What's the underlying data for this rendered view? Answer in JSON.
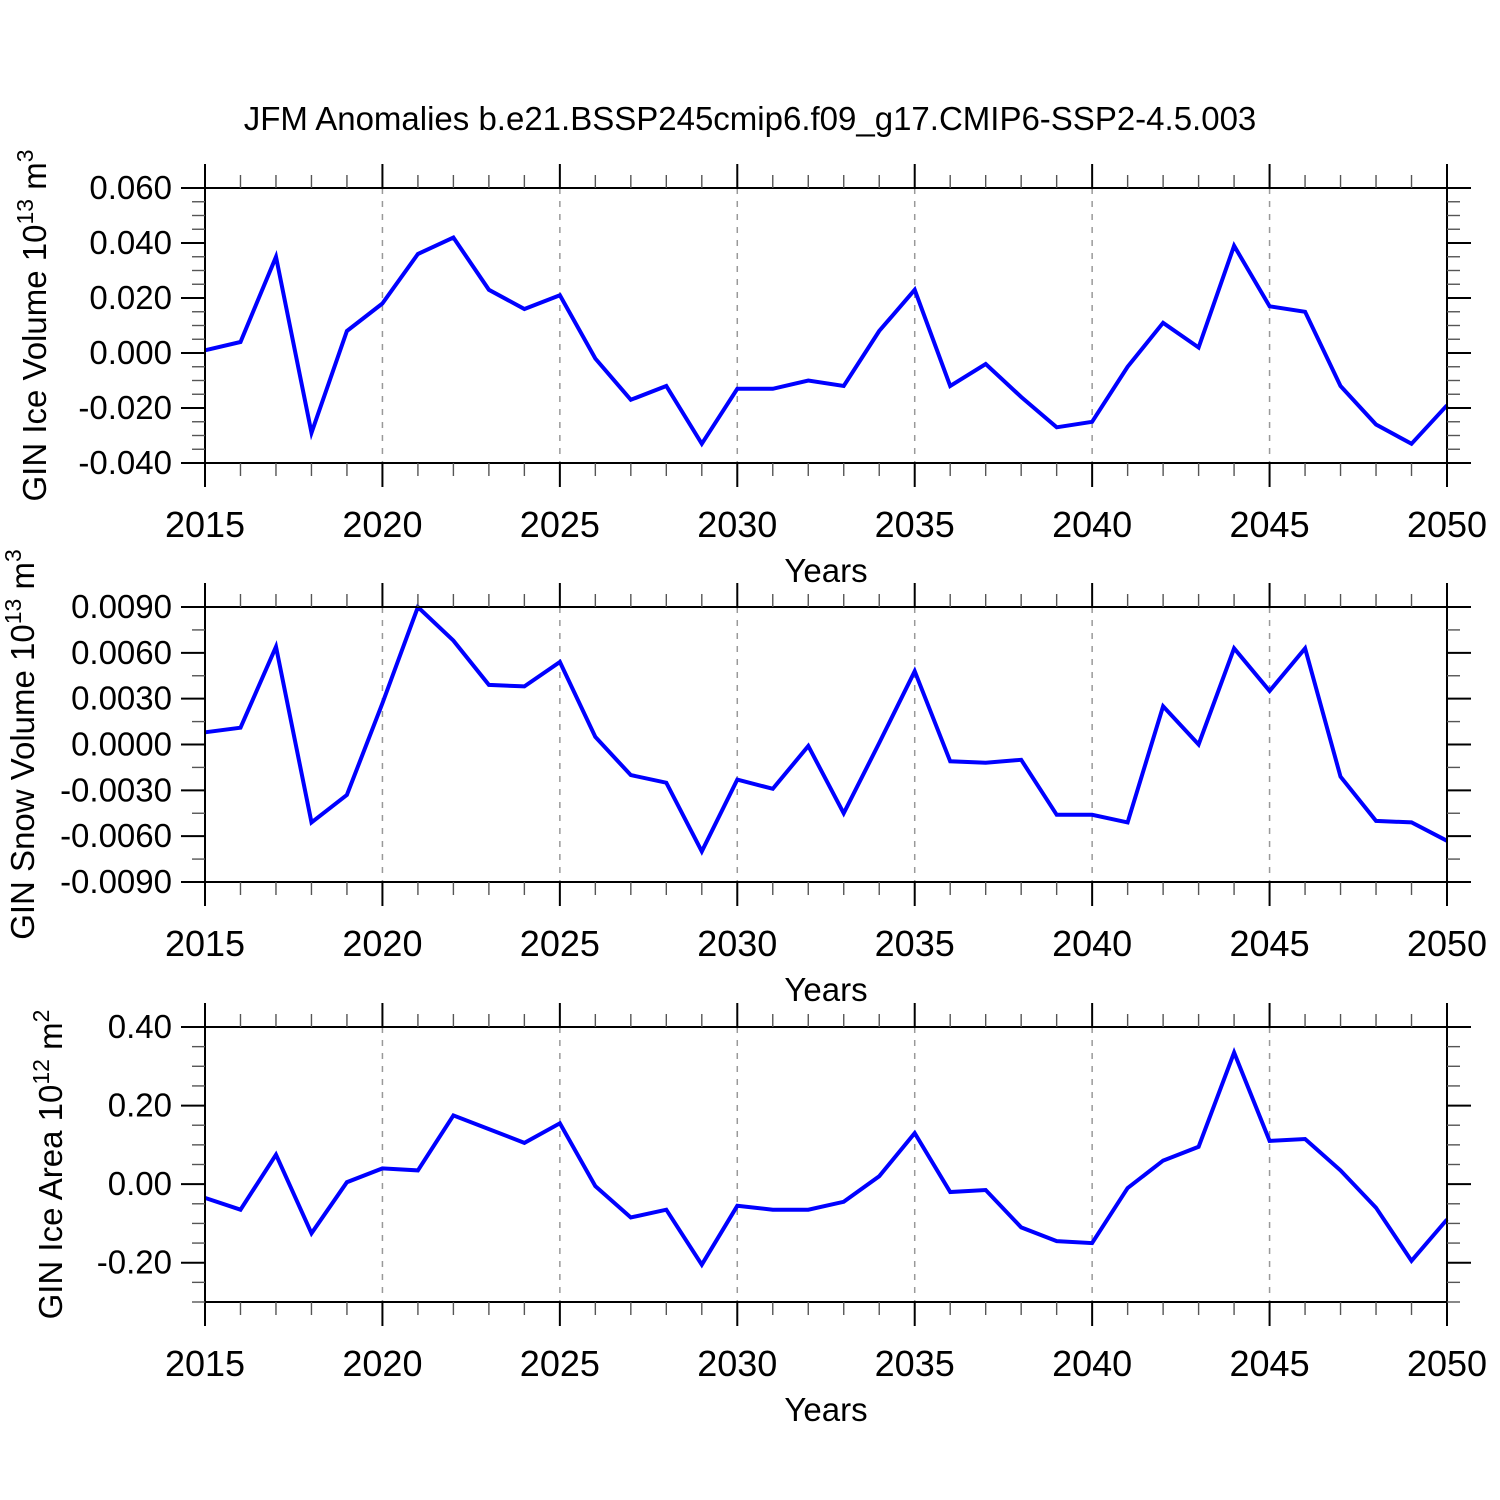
{
  "title": "JFM Anomalies b.e21.BSSP245cmip6.f09_g17.CMIP6-SSP2-4.5.003",
  "accent_color": "#0000ff",
  "chart_data": [
    {
      "type": "line",
      "name": "GIN Ice Volume anomalies",
      "ylabel": "GIN Ice Volume 10^{13} m^{3}",
      "xlabel": "Years",
      "line_color": "#0000ff",
      "legend": "none",
      "grid": "vertical-dashed",
      "xlim": [
        2015,
        2050
      ],
      "ylim": [
        -0.04,
        0.06
      ],
      "xtick_major": 5,
      "xtick_minor": 1,
      "ytick_major": 0.02,
      "ytick_minor": 0.005,
      "ytick_decimals": 3,
      "grid_x": [
        2020,
        2025,
        2030,
        2035,
        2040,
        2045
      ],
      "x": [
        2015,
        2016,
        2017,
        2018,
        2019,
        2020,
        2021,
        2022,
        2023,
        2024,
        2025,
        2026,
        2027,
        2028,
        2029,
        2030,
        2031,
        2032,
        2033,
        2034,
        2035,
        2036,
        2037,
        2038,
        2039,
        2040,
        2041,
        2042,
        2043,
        2044,
        2045,
        2046,
        2047,
        2048,
        2049,
        2050
      ],
      "values": [
        0.001,
        0.004,
        0.035,
        -0.029,
        0.008,
        0.018,
        0.036,
        0.042,
        0.023,
        0.016,
        0.021,
        -0.002,
        -0.017,
        -0.012,
        -0.033,
        -0.013,
        -0.013,
        -0.01,
        -0.012,
        0.008,
        0.023,
        -0.012,
        -0.004,
        -0.016,
        -0.027,
        -0.025,
        -0.005,
        0.011,
        0.002,
        0.039,
        0.017,
        0.015,
        -0.012,
        -0.026,
        -0.033,
        -0.019
      ]
    },
    {
      "type": "line",
      "name": "GIN Snow Volume anomalies",
      "ylabel": "GIN Snow Volume 10^{13} m^{3}",
      "xlabel": "Years",
      "line_color": "#0000ff",
      "legend": "none",
      "grid": "vertical-dashed",
      "xlim": [
        2015,
        2050
      ],
      "ylim": [
        -0.009,
        0.009
      ],
      "xtick_major": 5,
      "xtick_minor": 1,
      "ytick_major": 0.003,
      "ytick_minor": 0.0015,
      "ytick_decimals": 4,
      "grid_x": [
        2020,
        2025,
        2030,
        2035,
        2040,
        2045
      ],
      "x": [
        2015,
        2016,
        2017,
        2018,
        2019,
        2020,
        2021,
        2022,
        2023,
        2024,
        2025,
        2026,
        2027,
        2028,
        2029,
        2030,
        2031,
        2032,
        2033,
        2034,
        2035,
        2036,
        2037,
        2038,
        2039,
        2040,
        2041,
        2042,
        2043,
        2044,
        2045,
        2046,
        2047,
        2048,
        2049,
        2050
      ],
      "values": [
        0.0008,
        0.0011,
        0.0064,
        -0.0051,
        -0.0033,
        0.0027,
        0.009,
        0.0068,
        0.0039,
        0.0038,
        0.0054,
        0.0005,
        -0.002,
        -0.0025,
        -0.007,
        -0.0023,
        -0.0029,
        -0.0001,
        -0.0045,
        0.0001,
        0.0048,
        -0.0011,
        -0.0012,
        -0.001,
        -0.0046,
        -0.0046,
        -0.0051,
        0.0025,
        0.0,
        0.0063,
        0.0035,
        0.0063,
        -0.0021,
        -0.005,
        -0.0051,
        -0.0063
      ]
    },
    {
      "type": "line",
      "name": "GIN Ice Area anomalies",
      "ylabel": "GIN Ice Area 10^{12} m^{2}",
      "xlabel": "Years",
      "line_color": "#0000ff",
      "legend": "none",
      "grid": "vertical-dashed",
      "xlim": [
        2015,
        2050
      ],
      "ylim": [
        -0.3,
        0.4
      ],
      "xtick_major": 5,
      "xtick_minor": 1,
      "ytick_major": 0.2,
      "ytick_minor": 0.05,
      "ytick_decimals": 2,
      "grid_x": [
        2020,
        2025,
        2030,
        2035,
        2040,
        2045
      ],
      "x": [
        2015,
        2016,
        2017,
        2018,
        2019,
        2020,
        2021,
        2022,
        2023,
        2024,
        2025,
        2026,
        2027,
        2028,
        2029,
        2030,
        2031,
        2032,
        2033,
        2034,
        2035,
        2036,
        2037,
        2038,
        2039,
        2040,
        2041,
        2042,
        2043,
        2044,
        2045,
        2046,
        2047,
        2048,
        2049,
        2050
      ],
      "values": [
        -0.035,
        -0.065,
        0.075,
        -0.125,
        0.005,
        0.04,
        0.035,
        0.175,
        0.14,
        0.105,
        0.155,
        -0.005,
        -0.085,
        -0.065,
        -0.205,
        -0.055,
        -0.065,
        -0.065,
        -0.045,
        0.02,
        0.13,
        -0.02,
        -0.015,
        -0.11,
        -0.145,
        -0.15,
        -0.01,
        0.06,
        0.095,
        0.335,
        0.11,
        0.115,
        0.035,
        -0.06,
        -0.195,
        -0.09
      ]
    }
  ]
}
